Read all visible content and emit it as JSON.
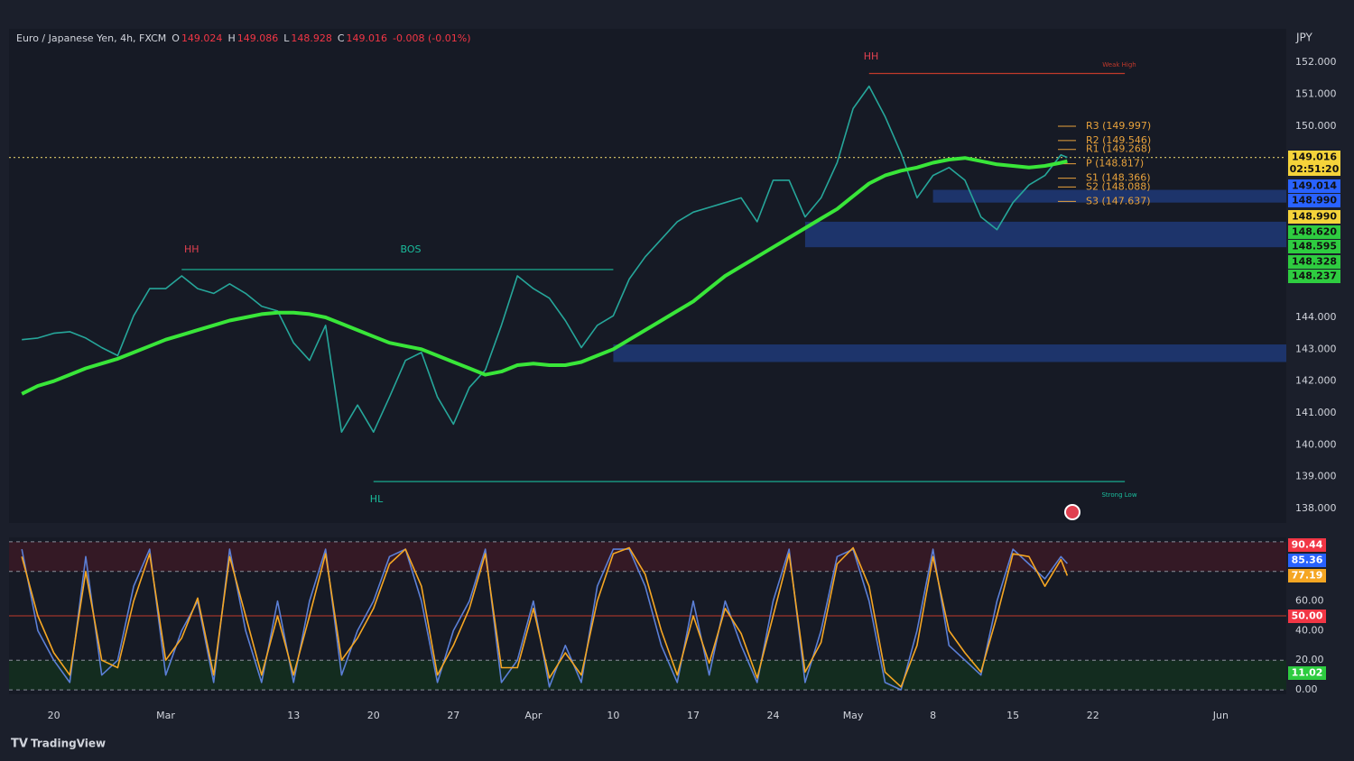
{
  "header": {
    "symbol": "Euro / Japanese Yen, 4h, FXCM",
    "ohlc": [
      {
        "key": "O",
        "value": "149.024"
      },
      {
        "key": "H",
        "value": "149.086"
      },
      {
        "key": "L",
        "value": "148.928"
      },
      {
        "key": "C",
        "value": "149.016"
      }
    ],
    "change": "-0.008 (-0.01%)",
    "currency": "JPY"
  },
  "annotations": [
    "HH",
    "BOS",
    "HL",
    "HH",
    "Weak High",
    "Strong Low"
  ],
  "price_tags": [
    {
      "text": "149.016",
      "sub": "02:51:20",
      "bg": "#f5d33a"
    },
    {
      "text": "149.014",
      "bg": "#2962ff"
    },
    {
      "text": "148.990",
      "bg": "#2962ff"
    },
    {
      "text": "148.990",
      "bg": "#f5d33a"
    },
    {
      "text": "148.620",
      "bg": "#2ecc40"
    },
    {
      "text": "148.595",
      "bg": "#2ecc40"
    },
    {
      "text": "148.328",
      "bg": "#2ecc40"
    },
    {
      "text": "148.237",
      "bg": "#2ecc40"
    }
  ],
  "osc_tags": [
    {
      "text": "90.44",
      "bg": "#f23645"
    },
    {
      "text": "85.36",
      "bg": "#2962ff"
    },
    {
      "text": "77.19",
      "bg": "#f5a623"
    },
    {
      "text": "50.00",
      "bg": "#f23645"
    },
    {
      "text": "11.02",
      "bg": "#2ecc40"
    }
  ],
  "footer": {
    "brand": "TradingView"
  },
  "chart_data": [
    {
      "type": "line",
      "x": [
        -2,
        -1,
        0,
        1,
        2,
        3,
        4,
        5,
        6,
        7,
        8,
        9,
        10,
        11,
        12,
        13,
        14,
        15,
        16,
        17,
        18,
        19,
        20,
        21,
        22,
        23,
        24,
        25,
        26,
        27,
        28,
        29,
        30,
        31,
        32,
        33,
        34,
        35,
        36,
        37,
        38,
        39,
        40,
        41,
        42,
        43,
        44,
        45,
        46,
        47,
        48,
        49,
        50,
        51,
        52,
        53,
        54,
        55,
        56,
        57,
        58,
        59,
        60,
        61,
        62,
        63,
        63.4
      ],
      "series": [
        {
          "color": "#26a69a",
          "values": [
            143.3,
            143.35,
            143.5,
            143.55,
            143.35,
            143.05,
            142.8,
            144.05,
            144.9,
            144.9,
            145.3,
            144.9,
            144.75,
            145.05,
            144.75,
            144.35,
            144.2,
            143.2,
            142.65,
            143.75,
            140.4,
            141.25,
            140.4,
            141.5,
            142.65,
            142.9,
            141.5,
            140.65,
            141.8,
            142.35,
            143.75,
            145.3,
            144.9,
            144.6,
            143.9,
            143.05,
            143.75,
            144.05,
            145.2,
            145.9,
            146.45,
            147.0,
            147.3,
            147.45,
            147.6,
            147.75,
            147.0,
            148.3,
            148.3,
            147.15,
            147.75,
            148.85,
            150.55,
            151.25,
            150.3,
            149.15,
            147.75,
            148.45,
            148.7,
            148.3,
            147.15,
            146.75,
            147.6,
            148.15,
            148.45,
            149.1,
            149.016
          ]
        },
        {
          "color": "#39e639",
          "values": [
            141.6,
            141.85,
            142.0,
            142.2,
            142.4,
            142.55,
            142.7,
            142.9,
            143.1,
            143.3,
            143.45,
            143.6,
            143.75,
            143.9,
            144.0,
            144.1,
            144.15,
            144.15,
            144.1,
            144.0,
            143.8,
            143.6,
            143.4,
            143.2,
            143.1,
            143.0,
            142.8,
            142.6,
            142.4,
            142.2,
            142.3,
            142.5,
            142.55,
            142.5,
            142.5,
            142.6,
            142.8,
            143.0,
            143.3,
            143.6,
            143.9,
            144.2,
            144.5,
            144.9,
            145.3,
            145.6,
            145.9,
            146.2,
            146.5,
            146.8,
            147.1,
            147.4,
            147.8,
            148.2,
            148.45,
            148.6,
            148.7,
            148.85,
            148.95,
            149.0,
            148.9,
            148.8,
            148.75,
            148.7,
            148.75,
            148.85,
            148.9
          ]
        }
      ],
      "xlim": [
        -2.8,
        77.1
      ],
      "ylim": [
        137.55,
        153.05
      ],
      "yticks": [
        {
          "value": 138,
          "label": "138.000"
        },
        {
          "value": 139,
          "label": "139.000"
        },
        {
          "value": 140,
          "label": "140.000"
        },
        {
          "value": 141,
          "label": "141.000"
        },
        {
          "value": 142,
          "label": "142.000"
        },
        {
          "value": 143,
          "label": "143.000"
        },
        {
          "value": 144,
          "label": "144.000"
        },
        {
          "value": 150,
          "label": "150.000"
        },
        {
          "value": 151,
          "label": "151.000"
        },
        {
          "value": 152,
          "label": "152.000"
        }
      ],
      "zones": [
        {
          "x0": 55,
          "low": 147.6,
          "high": 148.0,
          "color": "#1f3a78"
        },
        {
          "x0": 47,
          "low": 146.2,
          "high": 147.0,
          "color": "#1f3a78"
        },
        {
          "x0": 35,
          "low": 142.6,
          "high": 143.15,
          "color": "#1f3a78"
        }
      ],
      "levels": [
        {
          "value": 151.65,
          "x0": 51,
          "x1": 67,
          "color": "#c0392b",
          "dash": false
        },
        {
          "value": 145.5,
          "x0": 8,
          "x1": 35,
          "color": "#1abc9c",
          "dash": false
        },
        {
          "value": 138.85,
          "x0": 20,
          "x1": 67,
          "color": "#1abc9c",
          "dash": false
        },
        {
          "value": 149.016,
          "x0": -2.8,
          "x1": 77.1,
          "color": "#c8b560",
          "dash": true
        }
      ],
      "pivots": [
        {
          "label": "R3 (149.997)",
          "value": 149.997
        },
        {
          "label": "R2 (149.546)",
          "value": 149.546
        },
        {
          "label": "R1 (149.268)",
          "value": 149.268
        },
        {
          "label": "P (148.817)",
          "value": 148.817
        },
        {
          "label": "S1 (148.366)",
          "value": 148.366
        },
        {
          "label": "S2 (148.088)",
          "value": 148.088
        },
        {
          "label": "S3 (147.637)",
          "value": 147.637
        }
      ],
      "pivot_color": "#e8a23c"
    },
    {
      "type": "line",
      "x": [
        -2,
        -1,
        0,
        1,
        2,
        3,
        4,
        5,
        6,
        7,
        8,
        9,
        10,
        11,
        12,
        13,
        14,
        15,
        16,
        17,
        18,
        19,
        20,
        21,
        22,
        23,
        24,
        25,
        26,
        27,
        28,
        29,
        30,
        31,
        32,
        33,
        34,
        35,
        36,
        37,
        38,
        39,
        40,
        41,
        42,
        43,
        44,
        45,
        46,
        47,
        48,
        49,
        50,
        51,
        52,
        53,
        54,
        55,
        56,
        57,
        58,
        59,
        60,
        61,
        62,
        63,
        63.4
      ],
      "series": [
        {
          "color": "#5b7fd6",
          "values": [
            95,
            40,
            20,
            5,
            90,
            10,
            20,
            70,
            95,
            10,
            40,
            60,
            5,
            95,
            40,
            5,
            60,
            5,
            60,
            95,
            10,
            40,
            60,
            90,
            95,
            60,
            5,
            40,
            60,
            95,
            5,
            20,
            60,
            2,
            30,
            5,
            70,
            95,
            95,
            70,
            30,
            5,
            60,
            10,
            60,
            30,
            5,
            60,
            95,
            5,
            40,
            90,
            95,
            60,
            5,
            0,
            40,
            95,
            30,
            20,
            10,
            60,
            95,
            85,
            75,
            90,
            85.36
          ]
        },
        {
          "color": "#f5a623",
          "values": [
            90,
            50,
            25,
            10,
            80,
            20,
            15,
            60,
            92,
            20,
            35,
            62,
            10,
            90,
            50,
            10,
            50,
            10,
            50,
            92,
            20,
            35,
            55,
            85,
            95,
            70,
            10,
            30,
            55,
            92,
            15,
            15,
            55,
            8,
            25,
            10,
            60,
            92,
            96,
            78,
            40,
            10,
            50,
            18,
            55,
            38,
            8,
            50,
            92,
            12,
            32,
            85,
            96,
            70,
            12,
            2,
            30,
            90,
            40,
            25,
            12,
            50,
            92,
            90,
            70,
            88,
            77.19
          ]
        }
      ],
      "xlim": [
        -2.8,
        77.1
      ],
      "ylim": [
        -3,
        103
      ],
      "yticks": [
        {
          "value": 0,
          "label": "0.00"
        },
        {
          "value": 20,
          "label": "20.00"
        },
        {
          "value": 40,
          "label": "40.00"
        },
        {
          "value": 60,
          "label": "60.00"
        }
      ],
      "xticks": [
        {
          "value": 0,
          "label": "20"
        },
        {
          "value": 7,
          "label": "Mar"
        },
        {
          "value": 15,
          "label": "13"
        },
        {
          "value": 20,
          "label": "20"
        },
        {
          "value": 25,
          "label": "27"
        },
        {
          "value": 30,
          "label": "Apr"
        },
        {
          "value": 35,
          "label": "10"
        },
        {
          "value": 40,
          "label": "17"
        },
        {
          "value": 45,
          "label": "24"
        },
        {
          "value": 50,
          "label": "May"
        },
        {
          "value": 55,
          "label": "8"
        },
        {
          "value": 60,
          "label": "15"
        },
        {
          "value": 65,
          "label": "22"
        },
        {
          "value": 73,
          "label": "Jun"
        }
      ],
      "zones": [
        {
          "low": 80,
          "high": 100,
          "color": "#3a1a26"
        },
        {
          "low": 0,
          "high": 20,
          "color": "#13301f"
        }
      ],
      "hlines": [
        {
          "value": 100,
          "color": "#8a8f9c",
          "dash": true
        },
        {
          "value": 80,
          "color": "#8a8f9c",
          "dash": true
        },
        {
          "value": 50,
          "color": "#c0392b",
          "dash": false
        },
        {
          "value": 20,
          "color": "#8a8f9c",
          "dash": true
        },
        {
          "value": 0,
          "color": "#8a8f9c",
          "dash": true
        }
      ]
    }
  ]
}
